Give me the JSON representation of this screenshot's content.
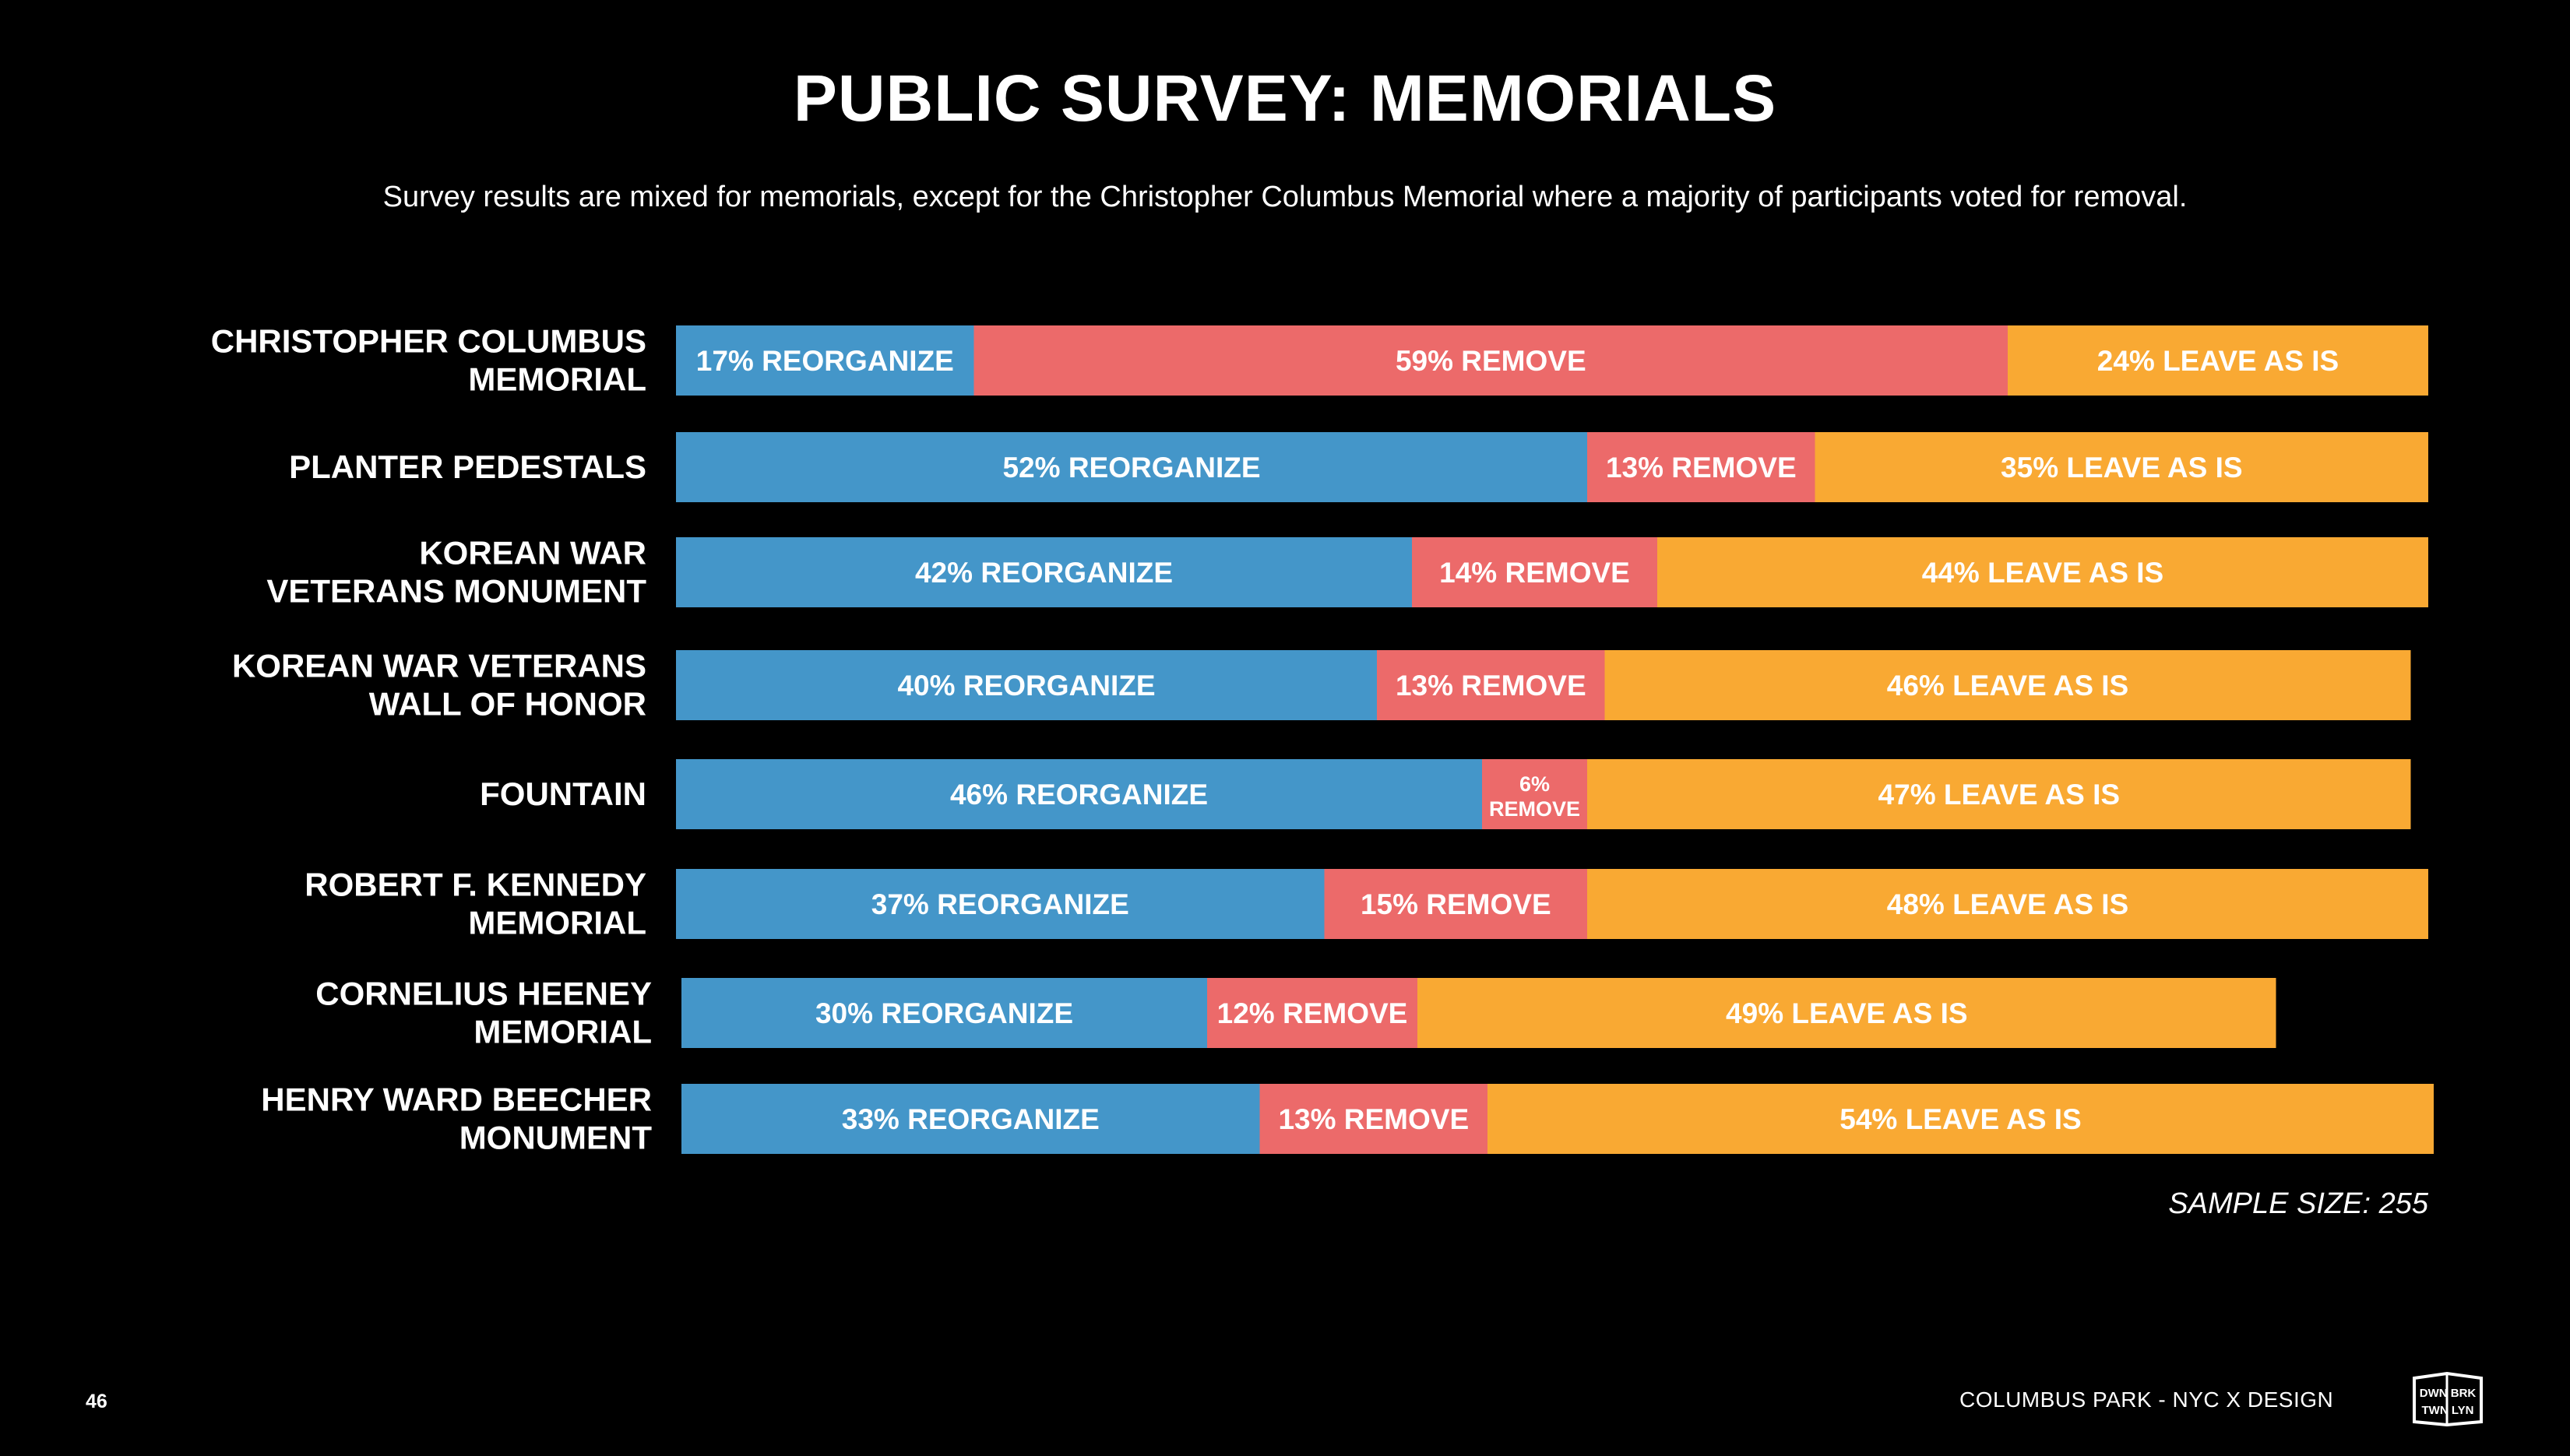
{
  "title": "PUBLIC SURVEY: MEMORIALS",
  "subtitle": "Survey results are mixed for memorials, except for the Christopher Columbus Memorial where a majority of participants voted for removal.",
  "sample_size": "SAMPLE SIZE: 255",
  "page_number": "46",
  "footer": "COLUMBUS PARK  - NYC X DESIGN",
  "logo": {
    "line1": "DWN BRK",
    "line2": "TWN LYN",
    "icon": "dtbk-logo-icon"
  },
  "colors": {
    "reorganize": "#4496C9",
    "remove": "#EC6A6A",
    "leave": "#F9A933",
    "background": "#000000"
  },
  "chart_data": {
    "type": "bar",
    "orientation": "horizontal-stacked-100",
    "categories": [
      [
        "CHRISTOPHER COLUMBUS",
        "MEMORIAL"
      ],
      [
        "PLANTER PEDESTALS"
      ],
      [
        "KOREAN WAR",
        "VETERANS MONUMENT"
      ],
      [
        "KOREAN WAR VETERANS",
        "WALL OF HONOR"
      ],
      [
        "FOUNTAIN"
      ],
      [
        "ROBERT F. KENNEDY",
        "MEMORIAL"
      ],
      [
        "CORNELIUS HEENEY",
        "MEMORIAL"
      ],
      [
        "HENRY WARD BEECHER",
        "MONUMENT"
      ]
    ],
    "series": [
      {
        "name": "REORGANIZE",
        "values": [
          17,
          52,
          42,
          40,
          46,
          37,
          30,
          33
        ],
        "labels": [
          "17% REORGANIZE",
          "52% REORGANIZE",
          "42% REORGANIZE",
          "40% REORGANIZE",
          "46% REORGANIZE",
          "37% REORGANIZE",
          "30% REORGANIZE",
          "33% REORGANIZE"
        ]
      },
      {
        "name": "REMOVE",
        "values": [
          59,
          13,
          14,
          13,
          6,
          15,
          12,
          13
        ],
        "labels": [
          "59% REMOVE",
          "13% REMOVE",
          "14% REMOVE",
          "13% REMOVE",
          "6% REMOVE",
          "15% REMOVE",
          "12% REMOVE",
          "13% REMOVE"
        ]
      },
      {
        "name": "LEAVE AS IS",
        "values": [
          24,
          35,
          44,
          46,
          47,
          48,
          49,
          54
        ],
        "labels": [
          "24% LEAVE AS IS",
          "35% LEAVE AS IS",
          "44% LEAVE AS IS",
          "46% LEAVE AS IS",
          "47% LEAVE AS IS",
          "48% LEAVE AS IS",
          "49% LEAVE AS IS",
          "54% LEAVE AS IS"
        ]
      }
    ],
    "title": "PUBLIC SURVEY: MEMORIALS",
    "xlim": [
      0,
      100
    ],
    "legend": "none",
    "grid": false
  }
}
